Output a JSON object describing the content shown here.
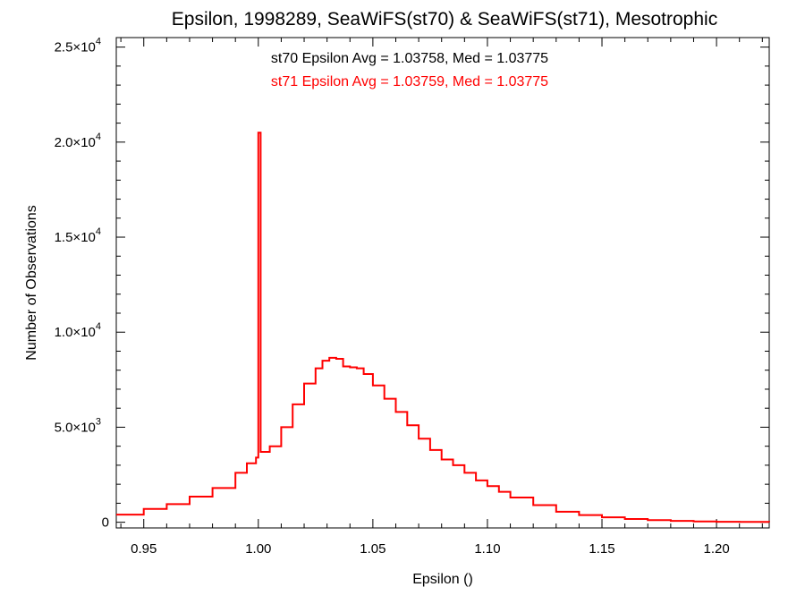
{
  "chart_data": {
    "type": "line",
    "title": "Epsilon, 1998289, SeaWiFS(st70) & SeaWiFS(st71), Mesotrophic",
    "xlabel": "Epsilon ()",
    "ylabel": "Number of Observations",
    "xlim": [
      0.938,
      1.223
    ],
    "ylim": [
      -300,
      25500
    ],
    "x_ticks": [
      {
        "value": 0.95,
        "label": "0.95"
      },
      {
        "value": 1.0,
        "label": "1.00"
      },
      {
        "value": 1.05,
        "label": "1.05"
      },
      {
        "value": 1.1,
        "label": "1.10"
      },
      {
        "value": 1.15,
        "label": "1.15"
      },
      {
        "value": 1.2,
        "label": "1.20"
      }
    ],
    "y_ticks": [
      {
        "value": 0,
        "mantissa": "0",
        "exponent": ""
      },
      {
        "value": 5000,
        "mantissa": "5.0×10",
        "exponent": "3"
      },
      {
        "value": 10000,
        "mantissa": "1.0×10",
        "exponent": "4"
      },
      {
        "value": 15000,
        "mantissa": "1.5×10",
        "exponent": "4"
      },
      {
        "value": 20000,
        "mantissa": "2.0×10",
        "exponent": "4"
      },
      {
        "value": 25000,
        "mantissa": "2.5×10",
        "exponent": "4"
      }
    ],
    "grid": false,
    "legend": "top-center",
    "annotations": [
      {
        "text": "st70 Epsilon Avg = 1.03758, Med = 1.03775",
        "color": "#000000"
      },
      {
        "text": "st71 Epsilon Avg = 1.03759, Med = 1.03775",
        "color": "#ff0000"
      }
    ],
    "series": [
      {
        "step": "histogram",
        "color": "#ff0000",
        "x": [
          0.938,
          0.95,
          0.96,
          0.97,
          0.98,
          0.99,
          0.995,
          0.999,
          1.0,
          1.001,
          1.005,
          1.01,
          1.015,
          1.02,
          1.025,
          1.028,
          1.031,
          1.034,
          1.037,
          1.04,
          1.043,
          1.046,
          1.05,
          1.055,
          1.06,
          1.065,
          1.07,
          1.075,
          1.08,
          1.085,
          1.09,
          1.095,
          1.1,
          1.105,
          1.11,
          1.12,
          1.13,
          1.14,
          1.15,
          1.16,
          1.17,
          1.18,
          1.19,
          1.2,
          1.21,
          1.223
        ],
        "y": [
          400,
          700,
          950,
          1350,
          1800,
          2600,
          3100,
          3400,
          20500,
          3700,
          4000,
          5000,
          6200,
          7300,
          8100,
          8500,
          8650,
          8600,
          8200,
          8150,
          8100,
          7800,
          7200,
          6500,
          5800,
          5100,
          4400,
          3800,
          3300,
          3000,
          2600,
          2200,
          1900,
          1600,
          1300,
          900,
          550,
          380,
          260,
          170,
          110,
          70,
          40,
          25,
          15,
          10
        ]
      }
    ]
  }
}
